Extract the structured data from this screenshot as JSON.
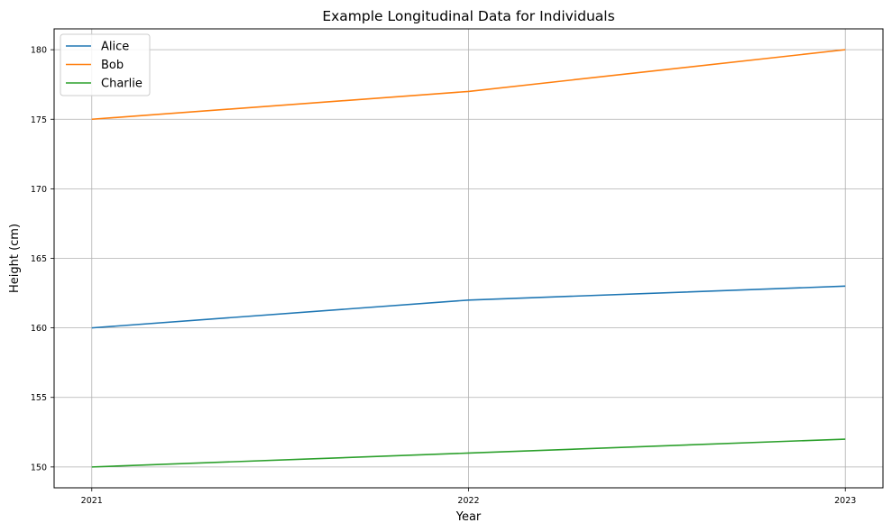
{
  "chart_data": {
    "type": "line",
    "title": "Example Longitudinal Data for Individuals",
    "xlabel": "Year",
    "ylabel": "Height (cm)",
    "x": [
      2021,
      2022,
      2023
    ],
    "x_tick_labels": [
      "2021",
      "2022",
      "2023"
    ],
    "y_ticks": [
      150,
      155,
      160,
      165,
      170,
      175,
      180
    ],
    "y_tick_labels": [
      "150",
      "155",
      "160",
      "165",
      "170",
      "175",
      "180"
    ],
    "xlim": [
      2020.9,
      2023.1
    ],
    "ylim": [
      148.5,
      181.5
    ],
    "grid": true,
    "legend_position": "top-left",
    "series": [
      {
        "name": "Alice",
        "color": "#1f77b4",
        "values": [
          160,
          162,
          163
        ]
      },
      {
        "name": "Bob",
        "color": "#ff7f0e",
        "values": [
          175,
          177,
          180
        ]
      },
      {
        "name": "Charlie",
        "color": "#2ca02c",
        "values": [
          150,
          151,
          152
        ]
      }
    ]
  }
}
